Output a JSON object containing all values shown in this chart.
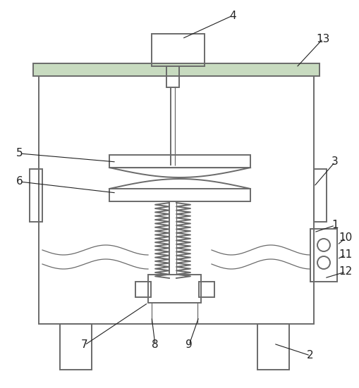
{
  "bg_color": "#ffffff",
  "line_color": "#6a6a6a",
  "line_width": 1.4,
  "thin_line": 0.9,
  "green_color": "#c8dbc0"
}
